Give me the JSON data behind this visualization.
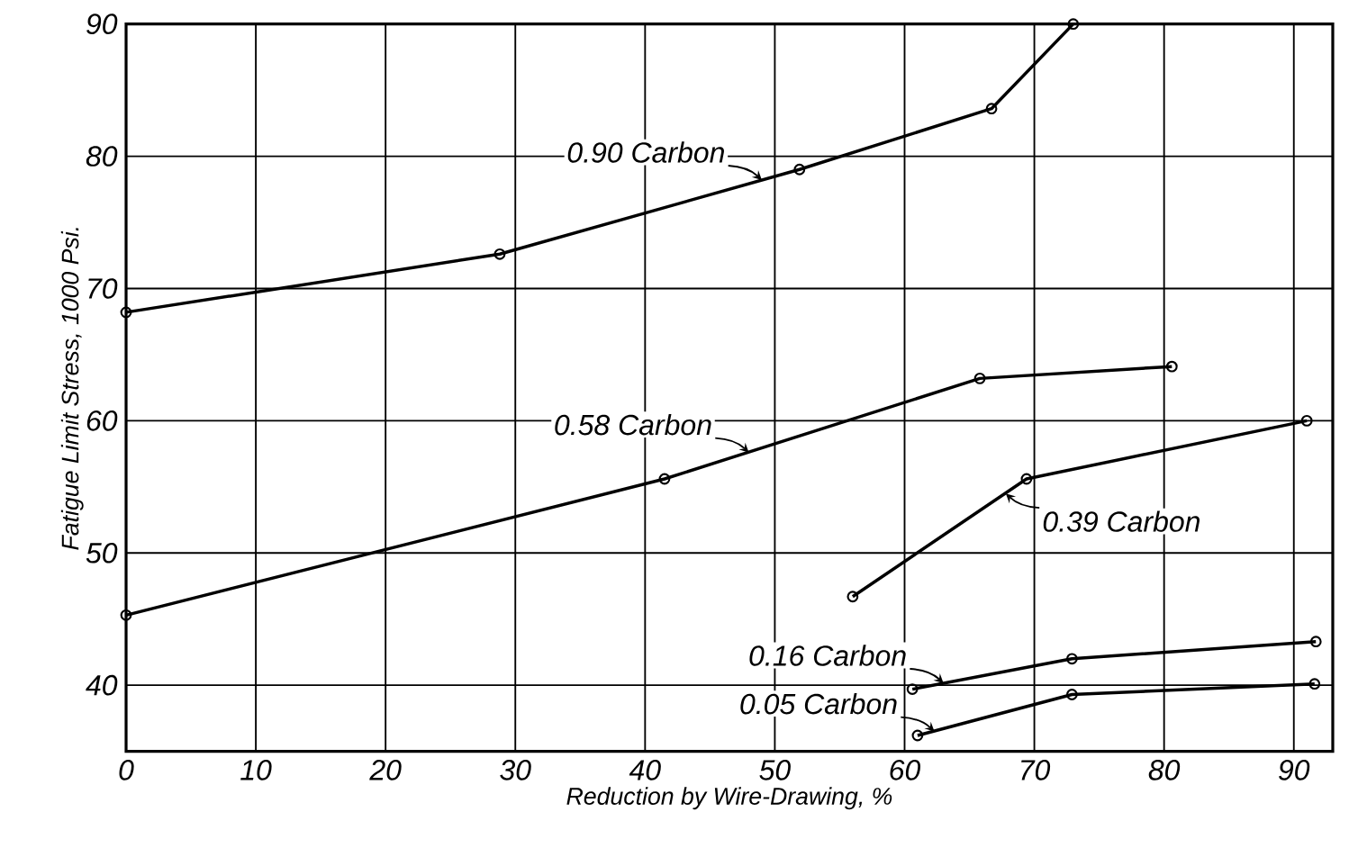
{
  "chart_data": {
    "type": "line",
    "xlabel": "Reduction by Wire-Drawing, %",
    "ylabel": "Fatigue Limit Stress, 1000 Psi.",
    "xlim": [
      0,
      93
    ],
    "xticks": [
      0,
      10,
      20,
      30,
      40,
      50,
      60,
      70,
      80,
      90
    ],
    "ylim": [
      35,
      90
    ],
    "yticks": [
      40,
      50,
      60,
      70,
      80,
      90
    ],
    "grid": true,
    "marker": "circle",
    "line_style": "solid",
    "series": [
      {
        "color": "#000000",
        "x": [
          0,
          28.8,
          51.9,
          66.7,
          73
        ],
        "values": [
          68.2,
          72.6,
          79,
          83.6,
          90
        ]
      },
      {
        "color": "#000000",
        "x": [
          0,
          41.5,
          65.8,
          80.6
        ],
        "values": [
          45.3,
          55.6,
          63.2,
          64.1
        ]
      },
      {
        "color": "#000000",
        "x": [
          56,
          69.4,
          91
        ],
        "values": [
          46.7,
          55.6,
          60
        ]
      },
      {
        "color": "#000000",
        "x": [
          60.6,
          72.9,
          91.7
        ],
        "values": [
          39.7,
          42,
          43.3
        ]
      },
      {
        "color": "#000000",
        "x": [
          61,
          72.9,
          91.6
        ],
        "values": [
          36.2,
          39.3,
          40.1
        ]
      }
    ],
    "annotations": [
      {
        "text": "0.90 Carbon",
        "x": 49,
        "y": 78.2
      },
      {
        "text": "0.58 Carbon",
        "x": 48,
        "y": 57.6
      },
      {
        "text": "0.39 Carbon",
        "x": 67.8,
        "y": 54.5
      },
      {
        "text": "0.16 Carbon",
        "x": 63,
        "y": 40.15
      },
      {
        "text": "0.05 Carbon",
        "x": 62.3,
        "y": 36.5
      }
    ]
  }
}
